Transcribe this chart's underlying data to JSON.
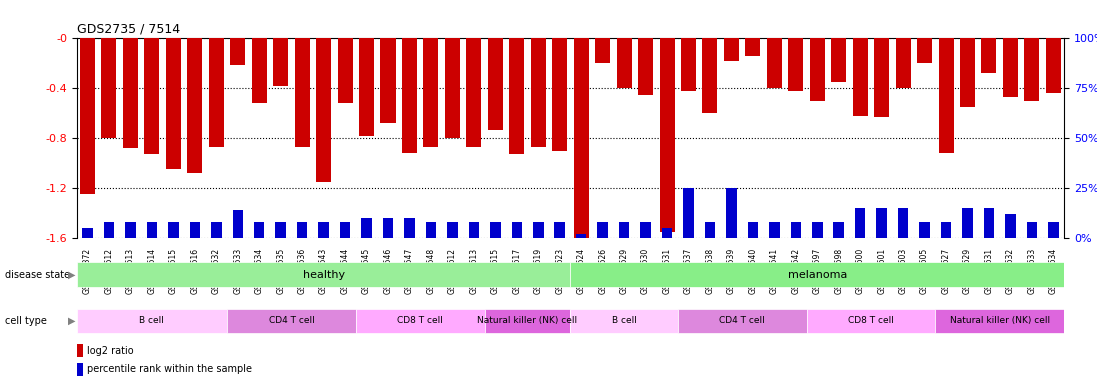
{
  "title": "GDS2735 / 7514",
  "samples": [
    "GSM158372",
    "GSM158512",
    "GSM158513",
    "GSM158514",
    "GSM158515",
    "GSM158516",
    "GSM158532",
    "GSM158533",
    "GSM158534",
    "GSM158535",
    "GSM158536",
    "GSM158543",
    "GSM158544",
    "GSM158545",
    "GSM158546",
    "GSM158547",
    "GSM158548",
    "GSM158612",
    "GSM158613",
    "GSM158615",
    "GSM158617",
    "GSM158619",
    "GSM158623",
    "GSM158524",
    "GSM158526",
    "GSM158529",
    "GSM158530",
    "GSM158531",
    "GSM158537",
    "GSM158538",
    "GSM158539",
    "GSM158540",
    "GSM158541",
    "GSM158542",
    "GSM158597",
    "GSM158598",
    "GSM158600",
    "GSM158601",
    "GSM158603",
    "GSM158605",
    "GSM158627",
    "GSM158629",
    "GSM158631",
    "GSM158632",
    "GSM158633",
    "GSM158634"
  ],
  "log2_ratio": [
    -1.25,
    -0.8,
    -0.88,
    -0.93,
    -1.05,
    -1.08,
    -0.87,
    -0.21,
    -0.52,
    -0.38,
    -0.87,
    -1.15,
    -0.52,
    -0.78,
    -0.68,
    -0.92,
    -0.87,
    -0.8,
    -0.87,
    -0.73,
    -0.93,
    -0.87,
    -0.9,
    -1.6,
    -0.2,
    -0.4,
    -0.45,
    -1.55,
    -0.42,
    -0.6,
    -0.18,
    -0.14,
    -0.4,
    -0.42,
    -0.5,
    -0.35,
    -0.62,
    -0.63,
    -0.4,
    -0.2,
    -0.92,
    -0.55,
    -0.28,
    -0.47,
    -0.5,
    -0.44
  ],
  "percentile": [
    5,
    8,
    8,
    8,
    8,
    8,
    8,
    14,
    8,
    8,
    8,
    8,
    8,
    10,
    10,
    10,
    8,
    8,
    8,
    8,
    8,
    8,
    8,
    2,
    8,
    8,
    8,
    5,
    25,
    8,
    25,
    8,
    8,
    8,
    8,
    8,
    15,
    15,
    15,
    8,
    8,
    15,
    15,
    12,
    8,
    8
  ],
  "disease_state": {
    "healthy": [
      0,
      23
    ],
    "melanoma": [
      23,
      46
    ]
  },
  "cell_types_healthy": [
    {
      "label": "B cell",
      "start": 0,
      "end": 7
    },
    {
      "label": "CD4 T cell",
      "start": 7,
      "end": 13
    },
    {
      "label": "CD8 T cell",
      "start": 13,
      "end": 19
    },
    {
      "label": "Natural killer (NK) cell",
      "start": 19,
      "end": 23
    }
  ],
  "cell_types_melanoma": [
    {
      "label": "B cell",
      "start": 23,
      "end": 28
    },
    {
      "label": "CD4 T cell",
      "start": 28,
      "end": 34
    },
    {
      "label": "CD8 T cell",
      "start": 34,
      "end": 40
    },
    {
      "label": "Natural killer (NK) cell",
      "start": 40,
      "end": 46
    }
  ],
  "ylim_left": [
    -1.6,
    0
  ],
  "ylim_right": [
    0,
    100
  ],
  "yticks_left": [
    0,
    -0.4,
    -0.8,
    -1.2,
    -1.6
  ],
  "yticks_right": [
    0,
    25,
    50,
    75,
    100
  ],
  "bar_color": "#cc0000",
  "percentile_color": "#0000cc",
  "healthy_color": "#99ee99",
  "melanoma_color": "#88ee88",
  "bcell_color": "#ffccff",
  "cd4_color": "#ff99ff",
  "cd8_color": "#ee77ee",
  "nk_color": "#dd66dd",
  "label_row_color": "#dddddd",
  "legend_bar_color": "#cc0000",
  "legend_pct_color": "#0000cc"
}
